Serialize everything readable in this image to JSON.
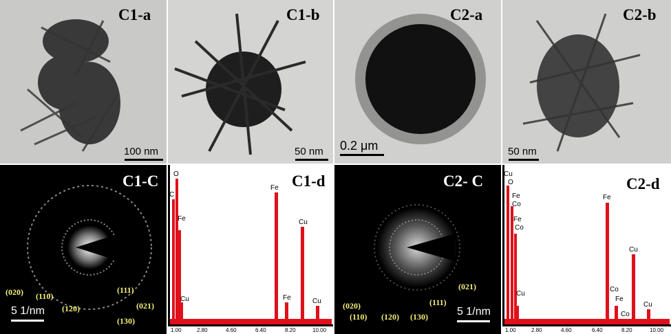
{
  "panels": {
    "c1a": {
      "title": "C1-a",
      "scale": "100 nm"
    },
    "c1b": {
      "title": "C1-b",
      "scale": "50 nm"
    },
    "c2a": {
      "title": "C2-a",
      "scale": "0.2 μm"
    },
    "c2b": {
      "title": "C2-b",
      "scale": "50 nm"
    },
    "c1c": {
      "title": "C1-C",
      "scale": "5 1/nm",
      "indices": [
        "(020)",
        "(110)",
        "(120)",
        "(111)",
        "(130)",
        "(021)"
      ]
    },
    "c1d": {
      "title": "C1-d",
      "elements": [
        "C",
        "O",
        "Fe",
        "Cu",
        "Fe",
        "Fe",
        "Cu",
        "Cu"
      ],
      "ticks": [
        "1.00",
        "2.80",
        "4.60",
        "6.40",
        "8.20",
        "10.00"
      ]
    },
    "c2c": {
      "title": "C2- C",
      "scale": "5 1/nm",
      "indices": [
        "(020)",
        "(110)",
        "(120)",
        "(130)",
        "(111)",
        "(021)"
      ]
    },
    "c2d": {
      "title": "C2-d",
      "elements": [
        "Cu",
        "O",
        "Fe",
        "Co",
        "Fe",
        "Co",
        "Cu",
        "Fe",
        "Co",
        "Fe",
        "Co",
        "Cu",
        "Cu"
      ],
      "ticks": [
        "1.00",
        "2.80",
        "4.60",
        "6.40",
        "8.20",
        "10.00"
      ]
    }
  },
  "colors": {
    "spectrum": "#e0101a",
    "index_label": "#f5f07a"
  }
}
